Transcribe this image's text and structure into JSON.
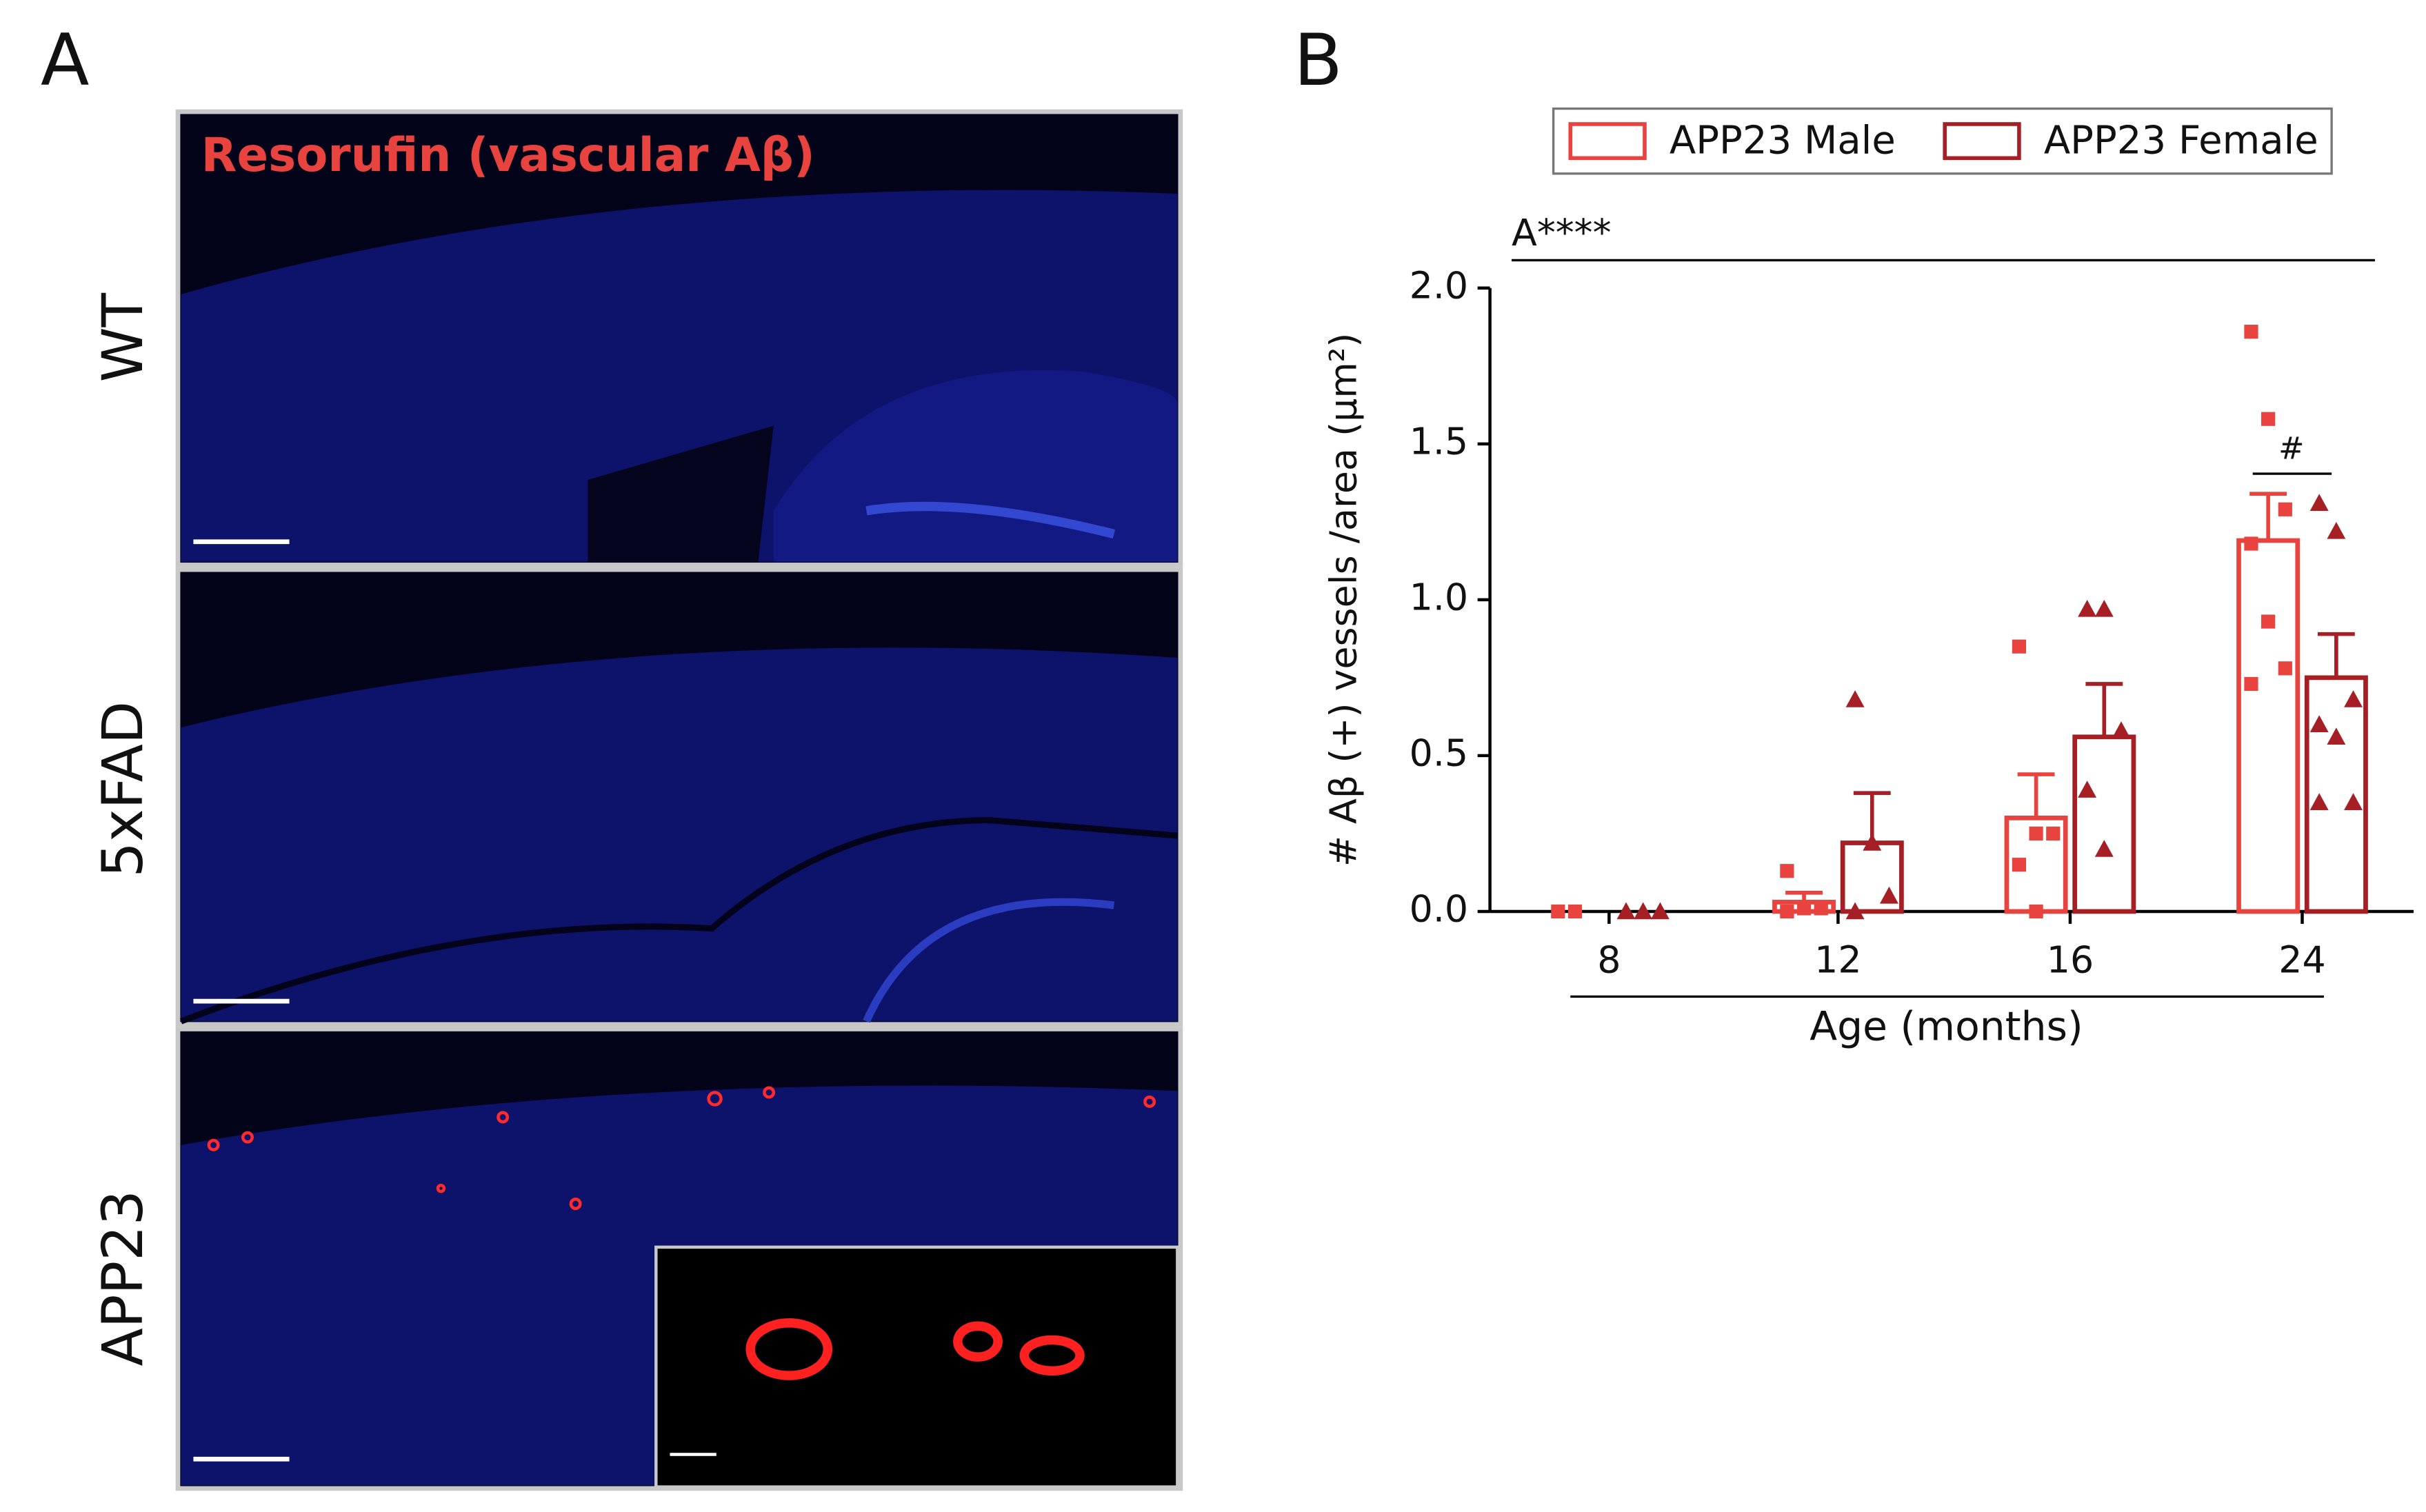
{
  "panel_labels": [
    "A",
    "B"
  ],
  "panel_a": {
    "stain_label": "Resorufin (vascular Aβ)",
    "rows": [
      "WT",
      "5xFAD",
      "APP23"
    ]
  },
  "chart_data": {
    "type": "bar",
    "y_label": "# Aβ (+) vessels /area (μm²)",
    "x_label": "Age (months)",
    "categories": [
      "8",
      "12",
      "16",
      "24"
    ],
    "series": [
      {
        "name": "APP23 Male",
        "color": "#e8433e",
        "marker": "square",
        "values": [
          0,
          0.03,
          0.3,
          1.19
        ],
        "errors": [
          0,
          0.03,
          0.14,
          0.15
        ],
        "points": [
          [
            0,
            0
          ],
          [
            0.13,
            0.01,
            0.01,
            0
          ],
          [
            0.85,
            0.25,
            0.25,
            0.15,
            0
          ],
          [
            1.86,
            1.58,
            1.29,
            1.18,
            0.93,
            0.78,
            0.73
          ]
        ]
      },
      {
        "name": "APP23 Female",
        "color": "#a51f24",
        "marker": "triangle",
        "values": [
          0,
          0.22,
          0.56,
          0.75
        ],
        "errors": [
          0,
          0.16,
          0.17,
          0.14
        ],
        "points": [
          [
            0,
            0,
            0
          ],
          [
            0.68,
            0.22,
            0.05,
            0
          ],
          [
            0.97,
            0.97,
            0.58,
            0.39,
            0.2
          ],
          [
            1.31,
            1.22,
            0.68,
            0.6,
            0.56,
            0.35,
            0.35
          ]
        ]
      }
    ],
    "ylim": [
      0,
      2
    ],
    "yticks": [
      {
        "value": 0,
        "label": "0.0"
      },
      {
        "value": 0.5,
        "label": "0.5"
      },
      {
        "value": 1,
        "label": "1.0"
      },
      {
        "value": 1.5,
        "label": "1.5"
      },
      {
        "value": 2,
        "label": "2.0"
      }
    ],
    "main_effect": "A****",
    "post_hoc": "#"
  }
}
